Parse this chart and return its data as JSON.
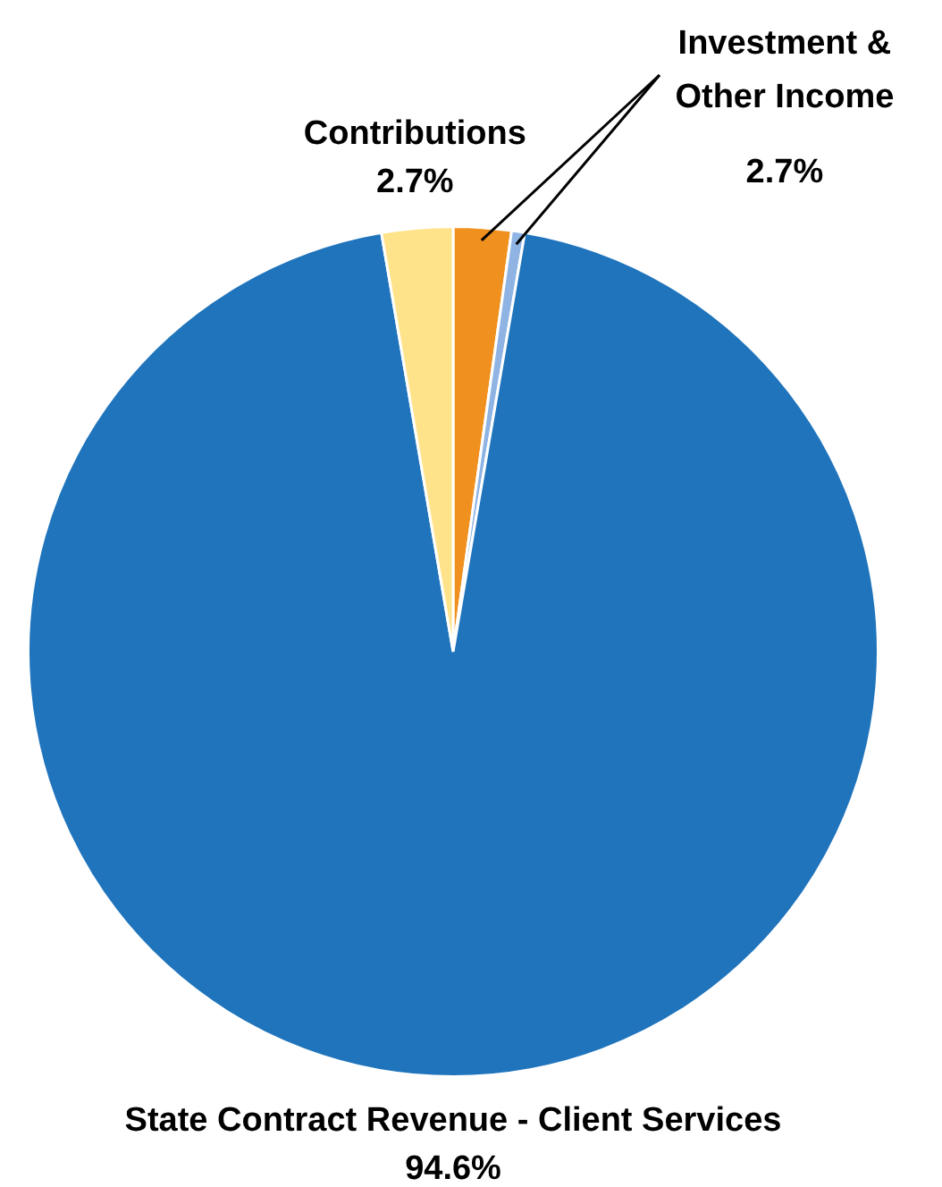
{
  "chart_data": {
    "type": "pie",
    "categories": [
      "Investment & Other Income",
      null,
      "State Contract Revenue - Client Services",
      "Contributions"
    ],
    "values": [
      2.2,
      0.5,
      94.6,
      2.7
    ],
    "colors": [
      "#f0901e",
      "#8fb4e3",
      "#1f74bc",
      "#ffe38a"
    ],
    "value_labels": [
      null,
      null,
      "94.6%",
      "2.7%"
    ],
    "annotations": [
      "2.7%"
    ],
    "legend": false
  }
}
